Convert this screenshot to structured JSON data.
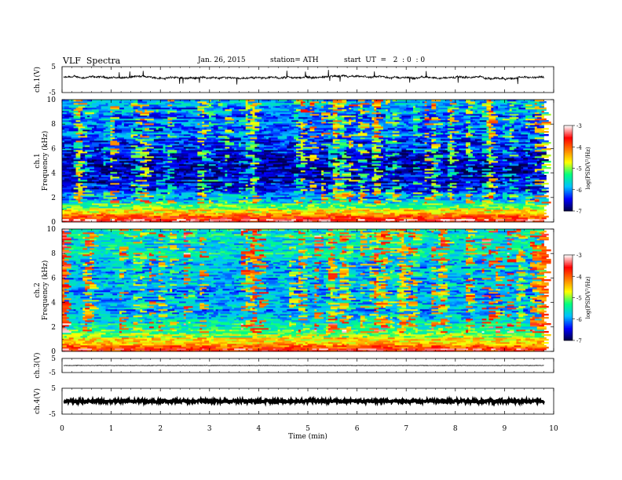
{
  "header": {
    "title": "VLF  Spectra",
    "date": "Jan. 26, 2015",
    "station": "station= ATH",
    "start": "start  UT  =   2  : 0  : 0"
  },
  "chart_data": [
    {
      "type": "line",
      "name": "ch1-waveform",
      "ylabel": "ch.1(V)",
      "ylim": [
        -5,
        5
      ],
      "yticks": [
        "5",
        "-5"
      ],
      "xlim": [
        0,
        10
      ],
      "x_end": 9.8,
      "mean": 0.8,
      "amplitude": 0.6,
      "noise": "high"
    },
    {
      "type": "heatmap",
      "name": "ch1-spectrogram",
      "ylabel_top": "ch.1",
      "ylabel": "Frequency  (kHz)",
      "ylim": [
        0,
        10
      ],
      "yticks": [
        "0",
        "2",
        "4",
        "6",
        "8",
        "10"
      ],
      "xlim": [
        0,
        9.8
      ],
      "colorbar": {
        "label": "log(PSD(V²/Hz)",
        "ticks": [
          "-3",
          "-4",
          "-5",
          "-6",
          "-7"
        ],
        "range": [
          -7,
          -3
        ]
      },
      "profile": [
        {
          "f": 0.0,
          "v": -3.3
        },
        {
          "f": 0.3,
          "v": -3.6
        },
        {
          "f": 0.7,
          "v": -4.2
        },
        {
          "f": 1.0,
          "v": -4.7
        },
        {
          "f": 1.5,
          "v": -5.4
        },
        {
          "f": 2.0,
          "v": -5.9
        },
        {
          "f": 2.5,
          "v": -6.4
        },
        {
          "f": 4.0,
          "v": -6.7
        },
        {
          "f": 6.0,
          "v": -6.4
        },
        {
          "f": 8.0,
          "v": -6.1
        },
        {
          "f": 10.0,
          "v": -6.0
        }
      ]
    },
    {
      "type": "heatmap",
      "name": "ch2-spectrogram",
      "ylabel_top": "ch.2",
      "ylabel": "Frequency  (kHz)",
      "ylim": [
        0,
        10
      ],
      "yticks": [
        "0",
        "2",
        "4",
        "6",
        "8",
        "10"
      ],
      "xlim": [
        0,
        9.8
      ],
      "colorbar": {
        "label": "log(PSD(V²/Hz)",
        "ticks": [
          "-3",
          "-4",
          "-5",
          "-6",
          "-7"
        ],
        "range": [
          -7,
          -3
        ]
      },
      "profile": [
        {
          "f": 0.0,
          "v": -3.6
        },
        {
          "f": 0.5,
          "v": -4.0
        },
        {
          "f": 1.0,
          "v": -4.6
        },
        {
          "f": 1.5,
          "v": -5.1
        },
        {
          "f": 2.0,
          "v": -5.4
        },
        {
          "f": 3.0,
          "v": -6.0
        },
        {
          "f": 4.0,
          "v": -5.8
        },
        {
          "f": 6.0,
          "v": -5.8
        },
        {
          "f": 8.0,
          "v": -5.6
        },
        {
          "f": 10.0,
          "v": -5.5
        }
      ]
    },
    {
      "type": "line",
      "name": "ch3-waveform",
      "ylabel": "ch.3(V)",
      "ylim": [
        -5,
        5
      ],
      "yticks": [
        "5",
        "-5"
      ],
      "xlim": [
        0,
        10
      ],
      "x_end": 9.8,
      "mean": 0.0,
      "amplitude": 0.3,
      "noise": "low"
    },
    {
      "type": "line",
      "name": "ch4-waveform",
      "ylabel": "ch.4(V)",
      "ylim": [
        -5,
        5
      ],
      "yticks": [
        "5",
        "-5"
      ],
      "xlim": [
        0,
        10
      ],
      "x_end": 9.8,
      "mean": 0.0,
      "amplitude": 0.5,
      "noise": "dense"
    }
  ],
  "x_axis": {
    "label": "Time  (min)",
    "ticks": [
      "0",
      "1",
      "2",
      "3",
      "4",
      "5",
      "6",
      "7",
      "8",
      "9",
      "10"
    ],
    "range": [
      0,
      10
    ]
  },
  "colors": {
    "colormap": [
      "#000040",
      "#0000ff",
      "#00c0ff",
      "#00ff80",
      "#ffff00",
      "#ff8000",
      "#ff0000",
      "#ffffff"
    ],
    "trace": "#000000"
  }
}
